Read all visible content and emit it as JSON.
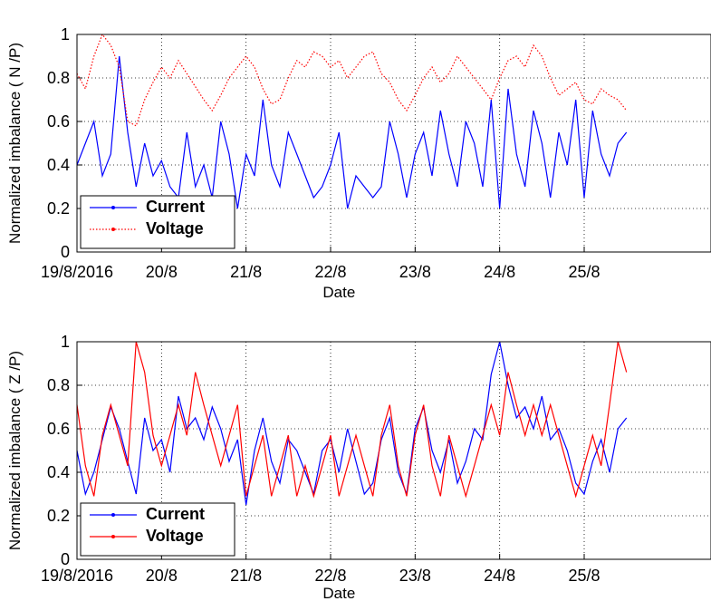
{
  "chart_data": [
    {
      "type": "line",
      "xlabel": "Date",
      "ylabel": "Normalized imbalance ( N /P)",
      "ylim": [
        0,
        1
      ],
      "yticks": [
        "0",
        "0.2",
        "0.4",
        "0.6",
        "0.8",
        "1"
      ],
      "xlim": [
        0,
        7.5
      ],
      "xticks": [
        {
          "x": 0,
          "label": "19/8/2016"
        },
        {
          "x": 1,
          "label": "20/8"
        },
        {
          "x": 2,
          "label": "21/8"
        },
        {
          "x": 3,
          "label": "22/8"
        },
        {
          "x": 4,
          "label": "23/8"
        },
        {
          "x": 5,
          "label": "24/8"
        },
        {
          "x": 6,
          "label": "25/8"
        }
      ],
      "grid": true,
      "legend_position": "bottom-left",
      "series": [
        {
          "name": "Current",
          "color": "#0000ff",
          "style": "solid",
          "x": [
            0,
            0.1,
            0.2,
            0.3,
            0.4,
            0.5,
            0.6,
            0.7,
            0.8,
            0.9,
            1.0,
            1.1,
            1.2,
            1.3,
            1.4,
            1.5,
            1.6,
            1.7,
            1.8,
            1.9,
            2.0,
            2.1,
            2.2,
            2.3,
            2.4,
            2.5,
            2.6,
            2.7,
            2.8,
            2.9,
            3.0,
            3.1,
            3.2,
            3.3,
            3.4,
            3.5,
            3.6,
            3.7,
            3.8,
            3.9,
            4.0,
            4.1,
            4.2,
            4.3,
            4.4,
            4.5,
            4.6,
            4.7,
            4.8,
            4.9,
            5.0,
            5.1,
            5.2,
            5.3,
            5.4,
            5.5,
            5.6,
            5.7,
            5.8,
            5.9,
            6.0,
            6.1,
            6.2,
            6.3,
            6.4,
            6.5
          ],
          "y": [
            0.4,
            0.5,
            0.6,
            0.35,
            0.45,
            0.9,
            0.55,
            0.3,
            0.5,
            0.35,
            0.42,
            0.3,
            0.25,
            0.55,
            0.3,
            0.4,
            0.25,
            0.6,
            0.45,
            0.2,
            0.45,
            0.35,
            0.7,
            0.4,
            0.3,
            0.55,
            0.45,
            0.35,
            0.25,
            0.3,
            0.4,
            0.55,
            0.2,
            0.35,
            0.3,
            0.25,
            0.3,
            0.6,
            0.45,
            0.25,
            0.45,
            0.55,
            0.35,
            0.65,
            0.45,
            0.3,
            0.6,
            0.5,
            0.3,
            0.7,
            0.2,
            0.75,
            0.45,
            0.3,
            0.65,
            0.5,
            0.25,
            0.55,
            0.4,
            0.7,
            0.25,
            0.65,
            0.45,
            0.35,
            0.5,
            0.55
          ]
        },
        {
          "name": "Voltage",
          "color": "#ff0000",
          "style": "dotted",
          "x": [
            0,
            0.1,
            0.2,
            0.3,
            0.4,
            0.5,
            0.6,
            0.7,
            0.8,
            0.9,
            1.0,
            1.1,
            1.2,
            1.3,
            1.4,
            1.5,
            1.6,
            1.7,
            1.8,
            1.9,
            2.0,
            2.1,
            2.2,
            2.3,
            2.4,
            2.5,
            2.6,
            2.7,
            2.8,
            2.9,
            3.0,
            3.1,
            3.2,
            3.3,
            3.4,
            3.5,
            3.6,
            3.7,
            3.8,
            3.9,
            4.0,
            4.1,
            4.2,
            4.3,
            4.4,
            4.5,
            4.6,
            4.7,
            4.8,
            4.9,
            5.0,
            5.1,
            5.2,
            5.3,
            5.4,
            5.5,
            5.6,
            5.7,
            5.8,
            5.9,
            6.0,
            6.1,
            6.2,
            6.3,
            6.4,
            6.5
          ],
          "y": [
            0.82,
            0.75,
            0.9,
            1.0,
            0.95,
            0.85,
            0.6,
            0.58,
            0.7,
            0.78,
            0.85,
            0.8,
            0.88,
            0.82,
            0.76,
            0.7,
            0.65,
            0.72,
            0.8,
            0.85,
            0.9,
            0.85,
            0.75,
            0.68,
            0.7,
            0.8,
            0.88,
            0.85,
            0.92,
            0.9,
            0.85,
            0.88,
            0.8,
            0.85,
            0.9,
            0.92,
            0.82,
            0.78,
            0.7,
            0.65,
            0.72,
            0.8,
            0.85,
            0.78,
            0.82,
            0.9,
            0.85,
            0.8,
            0.75,
            0.7,
            0.8,
            0.88,
            0.9,
            0.85,
            0.95,
            0.9,
            0.8,
            0.72,
            0.75,
            0.78,
            0.7,
            0.68,
            0.75,
            0.72,
            0.7,
            0.65
          ]
        }
      ]
    },
    {
      "type": "line",
      "xlabel": "Date",
      "ylabel": "Normalized imbalance ( Z /P)",
      "ylim": [
        0,
        1
      ],
      "yticks": [
        "0",
        "0.2",
        "0.4",
        "0.6",
        "0.8",
        "1"
      ],
      "xlim": [
        0,
        7.5
      ],
      "xticks": [
        {
          "x": 0,
          "label": "19/8/2016"
        },
        {
          "x": 1,
          "label": "20/8"
        },
        {
          "x": 2,
          "label": "21/8"
        },
        {
          "x": 3,
          "label": "22/8"
        },
        {
          "x": 4,
          "label": "23/8"
        },
        {
          "x": 5,
          "label": "24/8"
        },
        {
          "x": 6,
          "label": "25/8"
        }
      ],
      "grid": true,
      "legend_position": "bottom-left",
      "series": [
        {
          "name": "Current",
          "color": "#0000ff",
          "style": "solid",
          "x": [
            0,
            0.1,
            0.2,
            0.3,
            0.4,
            0.5,
            0.6,
            0.7,
            0.8,
            0.9,
            1.0,
            1.1,
            1.2,
            1.3,
            1.4,
            1.5,
            1.6,
            1.7,
            1.8,
            1.9,
            2.0,
            2.1,
            2.2,
            2.3,
            2.4,
            2.5,
            2.6,
            2.7,
            2.8,
            2.9,
            3.0,
            3.1,
            3.2,
            3.3,
            3.4,
            3.5,
            3.6,
            3.7,
            3.8,
            3.9,
            4.0,
            4.1,
            4.2,
            4.3,
            4.4,
            4.5,
            4.6,
            4.7,
            4.8,
            4.9,
            5.0,
            5.1,
            5.2,
            5.3,
            5.4,
            5.5,
            5.6,
            5.7,
            5.8,
            5.9,
            6.0,
            6.1,
            6.2,
            6.3,
            6.4,
            6.5
          ],
          "y": [
            0.5,
            0.3,
            0.4,
            0.55,
            0.7,
            0.6,
            0.45,
            0.3,
            0.65,
            0.5,
            0.55,
            0.4,
            0.75,
            0.6,
            0.65,
            0.55,
            0.7,
            0.6,
            0.45,
            0.55,
            0.25,
            0.5,
            0.65,
            0.45,
            0.35,
            0.55,
            0.5,
            0.4,
            0.3,
            0.5,
            0.55,
            0.4,
            0.6,
            0.45,
            0.3,
            0.35,
            0.55,
            0.65,
            0.4,
            0.3,
            0.6,
            0.7,
            0.5,
            0.4,
            0.55,
            0.35,
            0.45,
            0.6,
            0.55,
            0.85,
            1.0,
            0.8,
            0.65,
            0.7,
            0.6,
            0.75,
            0.55,
            0.6,
            0.5,
            0.35,
            0.3,
            0.45,
            0.55,
            0.4,
            0.6,
            0.65
          ]
        },
        {
          "name": "Voltage",
          "color": "#ff0000",
          "style": "solid",
          "x": [
            0,
            0.1,
            0.2,
            0.3,
            0.4,
            0.5,
            0.6,
            0.7,
            0.8,
            0.9,
            1.0,
            1.1,
            1.2,
            1.3,
            1.4,
            1.5,
            1.6,
            1.7,
            1.8,
            1.9,
            2.0,
            2.1,
            2.2,
            2.3,
            2.4,
            2.5,
            2.6,
            2.7,
            2.8,
            2.9,
            3.0,
            3.1,
            3.2,
            3.3,
            3.4,
            3.5,
            3.6,
            3.7,
            3.8,
            3.9,
            4.0,
            4.1,
            4.2,
            4.3,
            4.4,
            4.5,
            4.6,
            4.7,
            4.8,
            4.9,
            5.0,
            5.1,
            5.2,
            5.3,
            5.4,
            5.5,
            5.6,
            5.7,
            5.8,
            5.9,
            6.0,
            6.1,
            6.2,
            6.3,
            6.4,
            6.5
          ],
          "y": [
            0.71,
            0.43,
            0.29,
            0.57,
            0.71,
            0.57,
            0.43,
            1.0,
            0.86,
            0.57,
            0.43,
            0.57,
            0.71,
            0.57,
            0.86,
            0.71,
            0.57,
            0.43,
            0.57,
            0.71,
            0.29,
            0.43,
            0.57,
            0.29,
            0.43,
            0.57,
            0.29,
            0.43,
            0.29,
            0.43,
            0.57,
            0.29,
            0.43,
            0.57,
            0.43,
            0.29,
            0.57,
            0.71,
            0.43,
            0.29,
            0.57,
            0.71,
            0.43,
            0.29,
            0.57,
            0.43,
            0.29,
            0.43,
            0.57,
            0.71,
            0.57,
            0.86,
            0.71,
            0.57,
            0.71,
            0.57,
            0.71,
            0.57,
            0.43,
            0.29,
            0.43,
            0.57,
            0.43,
            0.71,
            1.0,
            0.86
          ]
        }
      ]
    }
  ]
}
